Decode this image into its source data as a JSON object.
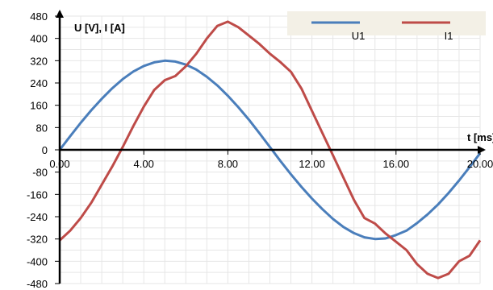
{
  "chart_data": {
    "type": "line",
    "title": "",
    "ylabel": "U [V], I [A]",
    "xlabel": "t [ms]",
    "xlim": [
      0,
      20
    ],
    "ylim": [
      -480,
      480
    ],
    "x_ticks": [
      "0.00",
      "4.00",
      "8.00",
      "12.00",
      "16.00",
      "20.00"
    ],
    "y_ticks": [
      "480",
      "400",
      "320",
      "240",
      "160",
      "80",
      "0",
      "-80",
      "-160",
      "-240",
      "-320",
      "-400",
      "-480"
    ],
    "grid": "vertical and horizontal minor lines, light",
    "legend_position": "top-right",
    "series": [
      {
        "name": "U1",
        "color": "#4a7ebb",
        "x": [
          0,
          0.5,
          1,
          1.5,
          2,
          2.5,
          3,
          3.5,
          4,
          4.5,
          5,
          5.5,
          6,
          6.5,
          7,
          7.5,
          8,
          8.5,
          9,
          9.5,
          10,
          10.5,
          11,
          11.5,
          12,
          12.5,
          13,
          13.5,
          14,
          14.5,
          15,
          15.5,
          16,
          16.5,
          17,
          17.5,
          18,
          18.5,
          19,
          19.5,
          20
        ],
        "values": [
          0,
          49,
          97,
          142,
          183,
          221,
          254,
          281,
          301,
          314,
          320,
          317,
          306,
          288,
          262,
          231,
          194,
          153,
          108,
          60,
          10,
          -40,
          -88,
          -133,
          -175,
          -213,
          -248,
          -277,
          -299,
          -314,
          -320,
          -318,
          -306,
          -290,
          -263,
          -232,
          -196,
          -155,
          -110,
          -62,
          -12
        ]
      },
      {
        "name": "I1",
        "color": "#be4b48",
        "x": [
          0,
          0.5,
          1,
          1.5,
          2,
          2.5,
          3,
          3.5,
          4,
          4.5,
          5,
          5.5,
          6,
          6.5,
          7,
          7.5,
          8,
          8.5,
          9,
          9.5,
          10,
          10.5,
          11,
          11.5,
          12,
          12.5,
          13,
          13.5,
          14,
          14.5,
          15,
          15.5,
          16,
          16.5,
          17,
          17.5,
          18,
          18.5,
          19,
          19.5,
          20
        ],
        "values": [
          -325,
          -290,
          -245,
          -190,
          -125,
          -60,
          10,
          85,
          155,
          215,
          250,
          265,
          300,
          345,
          400,
          445,
          460,
          440,
          410,
          380,
          345,
          315,
          280,
          220,
          140,
          60,
          -20,
          -100,
          -180,
          -245,
          -265,
          -300,
          -330,
          -360,
          -410,
          -445,
          -460,
          -445,
          -400,
          -380,
          -325
        ]
      }
    ]
  }
}
